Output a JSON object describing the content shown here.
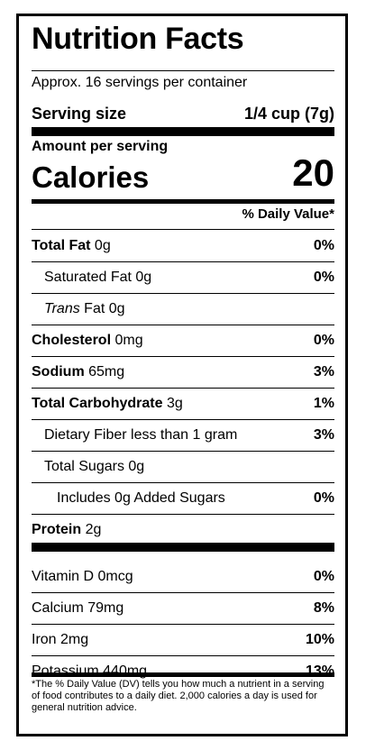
{
  "title": "Nutrition Facts",
  "servings_per_container": "Approx. 16 servings per container",
  "serving_size": {
    "label": "Serving size",
    "value": "1/4 cup (7g)"
  },
  "amount_per_serving": "Amount per serving",
  "calories": {
    "label": "Calories",
    "value": "20"
  },
  "daily_value_header": "% Daily Value*",
  "nutrients": [
    {
      "bold": "Total Fat",
      "plain": " 0g",
      "italic": "",
      "dv": "0%",
      "indent": 0
    },
    {
      "bold": "",
      "plain": "Saturated Fat 0g",
      "italic": "",
      "dv": "0%",
      "indent": 1
    },
    {
      "bold": "",
      "italic": "Trans",
      "plain": " Fat 0g",
      "dv": "",
      "indent": 1
    },
    {
      "bold": "Cholesterol",
      "plain": " 0mg",
      "italic": "",
      "dv": "0%",
      "indent": 0
    },
    {
      "bold": "Sodium",
      "plain": " 65mg",
      "italic": "",
      "dv": "3%",
      "indent": 0
    },
    {
      "bold": "Total Carbohydrate",
      "plain": " 3g",
      "italic": "",
      "dv": "1%",
      "indent": 0
    },
    {
      "bold": "",
      "plain": "Dietary Fiber less than 1 gram",
      "italic": "",
      "dv": "3%",
      "indent": 1
    },
    {
      "bold": "",
      "plain": "Total Sugars 0g",
      "italic": "",
      "dv": "",
      "indent": 1
    },
    {
      "bold": "",
      "plain": "Includes 0g Added Sugars",
      "italic": "",
      "dv": "0%",
      "indent": 2
    },
    {
      "bold": "Protein",
      "plain": " 2g",
      "italic": "",
      "dv": "",
      "indent": 0
    }
  ],
  "vitamins": [
    {
      "name": "Vitamin D 0mcg",
      "dv": "0%"
    },
    {
      "name": "Calcium 79mg",
      "dv": "8%"
    },
    {
      "name": "Iron 2mg",
      "dv": "10%"
    },
    {
      "name": "Potassium 440mg",
      "dv": "13%"
    }
  ],
  "footnote": "*The % Daily Value (DV) tells you how much a nutrient in a serving of food contributes to a daily diet. 2,000 calories a day is used for general nutrition advice."
}
